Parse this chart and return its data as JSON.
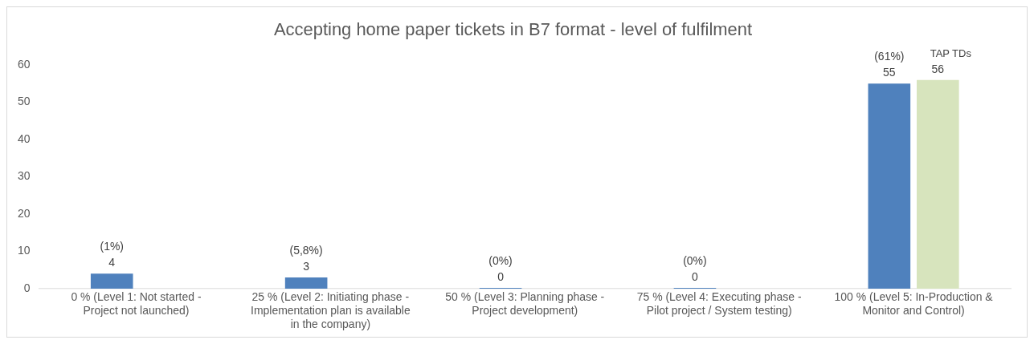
{
  "chart_data": {
    "type": "bar",
    "title": "Accepting home paper tickets in B7 format - level of fulfilment",
    "categories": [
      "0 % (Level 1: Not started - Project not launched)",
      "25 % (Level 2: Initiating phase - Implementation plan is available in the company)",
      "50 % (Level 3: Planning phase - Project development)",
      "75 % (Level 4: Executing phase - Pilot project / System testing)",
      "100 % (Level 5: In-Production & Monitor and Control)"
    ],
    "series": [
      {
        "color": "#4f81bd",
        "values": [
          4,
          3,
          0,
          0,
          55
        ],
        "value_labels": [
          "(1%)\n4",
          "(5,8%)\n3",
          "(0%)\n0",
          "(0%)\n0",
          "(61%)\n55"
        ]
      },
      {
        "name": "TAP TDs",
        "color": "#d7e4bd",
        "values": [
          null,
          null,
          null,
          null,
          56
        ],
        "value_labels": [
          null,
          null,
          null,
          null,
          "56"
        ]
      }
    ],
    "ylim": [
      0,
      60
    ],
    "yticks": [
      0,
      10,
      20,
      30,
      40,
      50,
      60
    ],
    "grid": false,
    "legend": false
  }
}
